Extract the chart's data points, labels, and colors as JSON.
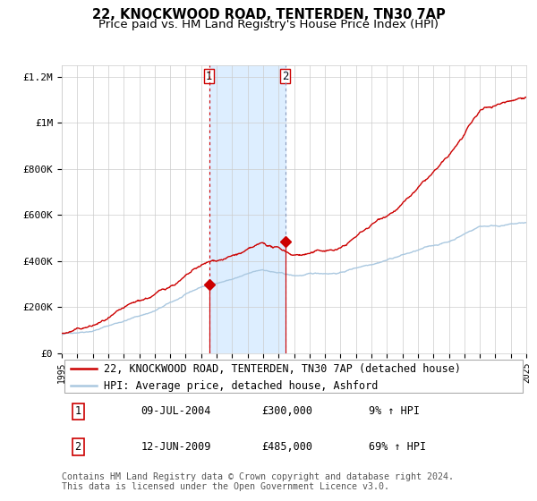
{
  "title": "22, KNOCKWOOD ROAD, TENTERDEN, TN30 7AP",
  "subtitle": "Price paid vs. HM Land Registry's House Price Index (HPI)",
  "ylim": [
    0,
    1250000
  ],
  "yticks": [
    0,
    200000,
    400000,
    600000,
    800000,
    1000000,
    1200000
  ],
  "ytick_labels": [
    "£0",
    "£200K",
    "£400K",
    "£600K",
    "£800K",
    "£1M",
    "£1.2M"
  ],
  "x_start_year": 1995,
  "x_end_year": 2025,
  "sale1_date": 2004.52,
  "sale1_price": 300000,
  "sale1_label": "1",
  "sale1_annotation": "09-JUL-2004",
  "sale1_pct": "9%",
  "sale2_date": 2009.44,
  "sale2_price": 485000,
  "sale2_label": "2",
  "sale2_annotation": "12-JUN-2009",
  "sale2_pct": "69%",
  "hpi_color": "#aac8e0",
  "property_color": "#cc0000",
  "shade_color": "#ddeeff",
  "dot_color": "#cc0000",
  "vline1_color": "#cc0000",
  "vline2_color": "#8899bb",
  "grid_color": "#cccccc",
  "bg_color": "#ffffff",
  "legend_property": "22, KNOCKWOOD ROAD, TENTERDEN, TN30 7AP (detached house)",
  "legend_hpi": "HPI: Average price, detached house, Ashford",
  "footer": "Contains HM Land Registry data © Crown copyright and database right 2024.\nThis data is licensed under the Open Government Licence v3.0.",
  "title_fontsize": 10.5,
  "subtitle_fontsize": 9.5,
  "tick_fontsize": 8,
  "legend_fontsize": 8.5,
  "annotation_fontsize": 8.5
}
